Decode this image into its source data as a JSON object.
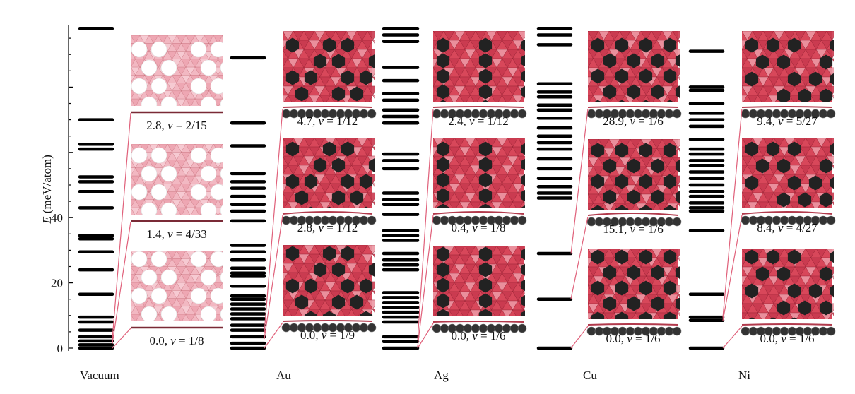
{
  "axis": {
    "ylabel_var": "E",
    "ylabel_unit": " (meV/atom)",
    "ticks": [
      {
        "label": "0",
        "value": 0
      },
      {
        "label": "20",
        "value": 20
      },
      {
        "label": "40",
        "value": 40
      }
    ],
    "ylim": [
      0,
      99
    ]
  },
  "colors": {
    "boron": "#d8475a",
    "boron_light": "#ec97a4",
    "metal": "#222222",
    "vacancy": "#ffffff",
    "connector": "#e0607a"
  },
  "substrates": [
    {
      "name": "Vacuum",
      "levels": [
        0,
        1,
        2.2,
        3.5,
        5.5,
        8,
        9.5,
        16.5,
        24,
        29.5,
        33.5,
        34.5,
        43,
        48,
        51,
        52.5,
        61,
        62.5,
        70,
        98
      ],
      "structures": [
        {
          "energy_text": "0.0, ",
          "v_value": "1/8",
          "energy": 0.0
        },
        {
          "energy_text": "1.4, ",
          "v_value": "4/33",
          "energy": 1.4
        },
        {
          "energy_text": "2.8, ",
          "v_value": "2/15",
          "energy": 2.8
        }
      ]
    },
    {
      "name": "Au",
      "levels": [
        0,
        1.5,
        3.5,
        5.5,
        7,
        9,
        10.5,
        12,
        13.5,
        15,
        16,
        19,
        22,
        23,
        24.5,
        27,
        29.5,
        31.5,
        39,
        42,
        44,
        46.5,
        49,
        51,
        53.5,
        62,
        69,
        89
      ],
      "structures": [
        {
          "energy_text": "0.0, ",
          "v_value": "1/9",
          "energy": 0.0
        },
        {
          "energy_text": "2.8, ",
          "v_value": "1/12",
          "energy": 2.8
        },
        {
          "energy_text": "4.7, ",
          "v_value": "1/12",
          "energy": 4.7
        }
      ]
    },
    {
      "name": "Ag",
      "levels": [
        0,
        2,
        3.5,
        8,
        9.5,
        11,
        12.5,
        14,
        15.5,
        17,
        24,
        25.5,
        27,
        29,
        33,
        34.5,
        36,
        41,
        44,
        45.5,
        47.5,
        55,
        57.5,
        59.5,
        69,
        71,
        73,
        76,
        78,
        82,
        86,
        94,
        96,
        98
      ],
      "structures": [
        {
          "energy_text": "0.0, ",
          "v_value": "1/6",
          "energy": 0.0
        },
        {
          "energy_text": "0.4, ",
          "v_value": "1/8",
          "energy": 0.4
        },
        {
          "energy_text": "2.4, ",
          "v_value": "1/12",
          "energy": 2.4
        }
      ]
    },
    {
      "name": "Cu",
      "levels": [
        0,
        15,
        29,
        46,
        47.5,
        49.5,
        52,
        55,
        58,
        61,
        63,
        65,
        67.5,
        70.5,
        73,
        74.5,
        77,
        78.5,
        81,
        93,
        96,
        98
      ],
      "structures": [
        {
          "energy_text": "0.0, ",
          "v_value": "1/6",
          "energy": 0.0
        },
        {
          "energy_text": "15.1, ",
          "v_value": "1/6",
          "energy": 15.1
        },
        {
          "energy_text": "28.9, ",
          "v_value": "1/6",
          "energy": 28.9
        }
      ]
    },
    {
      "name": "Ni",
      "levels": [
        0,
        8.5,
        9.5,
        16.5,
        36,
        42,
        43,
        44.5,
        46.5,
        48,
        50,
        52,
        54,
        56,
        57.5,
        59.5,
        61,
        64,
        68,
        70,
        72,
        75,
        79,
        80,
        91
      ],
      "structures": [
        {
          "energy_text": "0.0, ",
          "v_value": "1/6",
          "energy": 0.0
        },
        {
          "energy_text": "8.4, ",
          "v_value": "4/27",
          "energy": 8.4
        },
        {
          "energy_text": "9.4, ",
          "v_value": "5/27",
          "energy": 9.4
        }
      ]
    }
  ]
}
